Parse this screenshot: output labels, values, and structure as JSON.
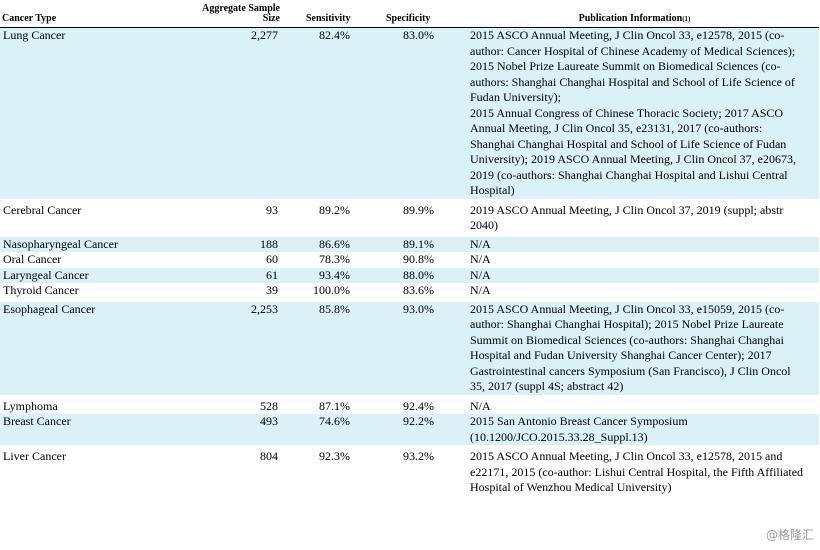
{
  "headers": {
    "cancer_type": "Cancer Type",
    "sample_size": "Aggregate Sample Size",
    "sensitivity": "Sensitivity",
    "specificity": "Specificity",
    "publication": "Publication Information",
    "publication_note": "(1)"
  },
  "rows": [
    {
      "type": "Lung Cancer",
      "size": "2,277",
      "sens": "82.4%",
      "spec": "83.0%",
      "pub": "2015 ASCO Annual Meeting, J Clin Oncol 33, e12578, 2015 (co-author: Cancer Hospital of Chinese Academy of Medical Sciences); 2015 Nobel Prize Laureate Summit on Biomedical Sciences (co-authors: Shanghai Changhai Hospital and School of Life Science of Fudan University);\n2015 Annual Congress of Chinese Thoracic Society; 2017 ASCO Annual Meeting, J Clin Oncol 35, e23131, 2017 (co-authors: Shanghai Changhai Hospital and School of Life Science of Fudan University); 2019 ASCO Annual Meeting, J Clin Oncol 37, e20673, 2019 (co-authors: Shanghai Changhai Hospital and Lishui Central Hospital)"
    },
    {
      "type": "Cerebral Cancer",
      "size": "93",
      "sens": "89.2%",
      "spec": "89.9%",
      "pub": "2019 ASCO Annual Meeting, J Clin Oncol 37, 2019 (suppl; abstr 2040)"
    },
    {
      "type": "Nasopharyngeal Cancer",
      "size": "188",
      "sens": "86.6%",
      "spec": "89.1%",
      "pub": "N/A"
    },
    {
      "type": "Oral Cancer",
      "size": "60",
      "sens": "78.3%",
      "spec": "90.8%",
      "pub": "N/A"
    },
    {
      "type": "Laryngeal Cancer",
      "size": "61",
      "sens": "93.4%",
      "spec": "88.0%",
      "pub": "N/A"
    },
    {
      "type": "Thyroid Cancer",
      "size": "39",
      "sens": "100.0%",
      "spec": "83.6%",
      "pub": "N/A"
    },
    {
      "type": "Esophageal Cancer",
      "size": "2,253",
      "sens": "85.8%",
      "spec": "93.0%",
      "pub": "2015 ASCO Annual Meeting, J Clin Oncol 33, e15059, 2015 (co-author: Shanghai Changhai Hospital); 2015 Nobel Prize Laureate Summit on Biomedical Sciences (co-authors: Shanghai Changhai Hospital and Fudan University Shanghai Cancer Center); 2017 Gastrointestinal cancers Symposium (San Francisco), J Clin Oncol 35, 2017 (suppl 4S; abstract 42)"
    },
    {
      "type": "Lymphoma",
      "size": "528",
      "sens": "87.1%",
      "spec": "92.4%",
      "pub": "N/A"
    },
    {
      "type": "Breast Cancer",
      "size": "493",
      "sens": "74.6%",
      "spec": "92.2%",
      "pub": "2015 San Antonio Breast Cancer Symposium (10.1200/JCO.2015.33.28_Suppl.13)"
    },
    {
      "type": "Liver Cancer",
      "size": "804",
      "sens": "92.3%",
      "spec": "93.2%",
      "pub": "2015 ASCO Annual Meeting, J Clin Oncol 33, e12578, 2015 and e22171, 2015 (co-author: Lishui Central Hospital, the Fifth Affiliated Hospital of Wenzhou Medical University)"
    }
  ],
  "shade_color": "#dbf1f8",
  "watermark": "@格隆汇"
}
